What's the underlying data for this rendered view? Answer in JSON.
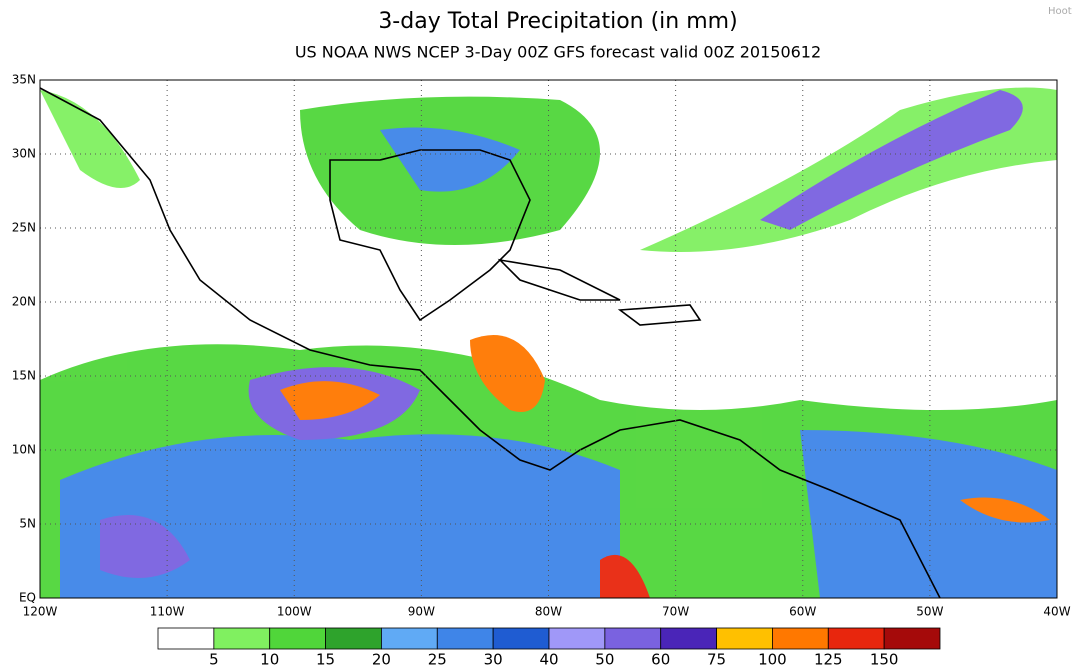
{
  "header": {
    "title": "3-day Total Precipitation (in mm)",
    "subtitle": "US NOAA NWS NCEP 3-Day 00Z GFS forecast valid 00Z 20150612"
  },
  "watermark": "Hoot",
  "map": {
    "lat_labels": [
      "EQ",
      "5N",
      "10N",
      "15N",
      "20N",
      "25N",
      "30N",
      "35N"
    ],
    "lon_labels": [
      "120W",
      "110W",
      "100W",
      "90W",
      "80W",
      "70W",
      "60W",
      "50W",
      "40W"
    ]
  },
  "colorbar": {
    "labels": [
      "5",
      "10",
      "15",
      "20",
      "25",
      "30",
      "40",
      "50",
      "60",
      "75",
      "100",
      "125",
      "150"
    ],
    "colors": [
      "#ffffff",
      "#80f060",
      "#50d63a",
      "#2ea32c",
      "#60aaf5",
      "#3f85e8",
      "#1f5cd2",
      "#a098f8",
      "#7a62e0",
      "#4a25b8",
      "#ffc000",
      "#ff7800",
      "#e8260d",
      "#a50a0a"
    ]
  }
}
